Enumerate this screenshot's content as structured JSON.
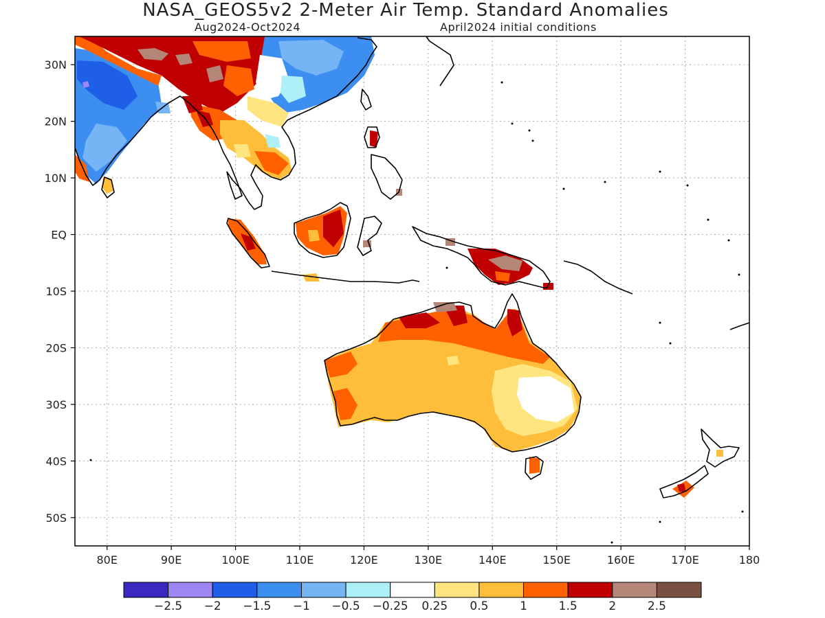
{
  "title": "NASA_GEOS5v2 2-Meter Air Temp. Standard Anomalies",
  "subtitle_left": "Aug2024-Oct2024",
  "subtitle_right": "April2024 initial conditions",
  "map": {
    "lon_range": [
      75,
      180
    ],
    "lat_range": [
      -55,
      35
    ],
    "lat_ticks": [
      {
        "value": 30,
        "label": "30N"
      },
      {
        "value": 20,
        "label": "20N"
      },
      {
        "value": 10,
        "label": "10N"
      },
      {
        "value": 0,
        "label": "EQ"
      },
      {
        "value": -10,
        "label": "10S"
      },
      {
        "value": -20,
        "label": "20S"
      },
      {
        "value": -30,
        "label": "30S"
      },
      {
        "value": -40,
        "label": "40S"
      },
      {
        "value": -50,
        "label": "50S"
      }
    ],
    "lon_ticks": [
      {
        "value": 80,
        "label": "80E"
      },
      {
        "value": 90,
        "label": "90E"
      },
      {
        "value": 100,
        "label": "100E"
      },
      {
        "value": 110,
        "label": "110E"
      },
      {
        "value": 120,
        "label": "120E"
      },
      {
        "value": 130,
        "label": "130E"
      },
      {
        "value": 140,
        "label": "140E"
      },
      {
        "value": 150,
        "label": "150E"
      },
      {
        "value": 160,
        "label": "160E"
      },
      {
        "value": 170,
        "label": "170E"
      },
      {
        "value": 180,
        "label": "180"
      }
    ],
    "grid": "dotted",
    "coastline_color": "#000000"
  },
  "colorbar": {
    "colors": [
      "#3b28c1",
      "#9e85f4",
      "#1f5ee6",
      "#3c8ff0",
      "#75b4f5",
      "#aef0f8",
      "#ffffff",
      "#ffe57f",
      "#ffbe3a",
      "#ff6000",
      "#c00000",
      "#b38678",
      "#7a5043"
    ],
    "labels": [
      "-2.5",
      "-2",
      "-1.5",
      "-1",
      "-0.5",
      "-0.25",
      "0.25",
      "0.5",
      "1",
      "1.5",
      "2",
      "2.5"
    ]
  },
  "icons": [
    "india-landmass-shape",
    "indochina-landmass-shape",
    "borneo-island-shape",
    "sumatra-island-shape",
    "new-guinea-island-shape",
    "australia-continent-shape",
    "new-zealand-islands-shape"
  ]
}
